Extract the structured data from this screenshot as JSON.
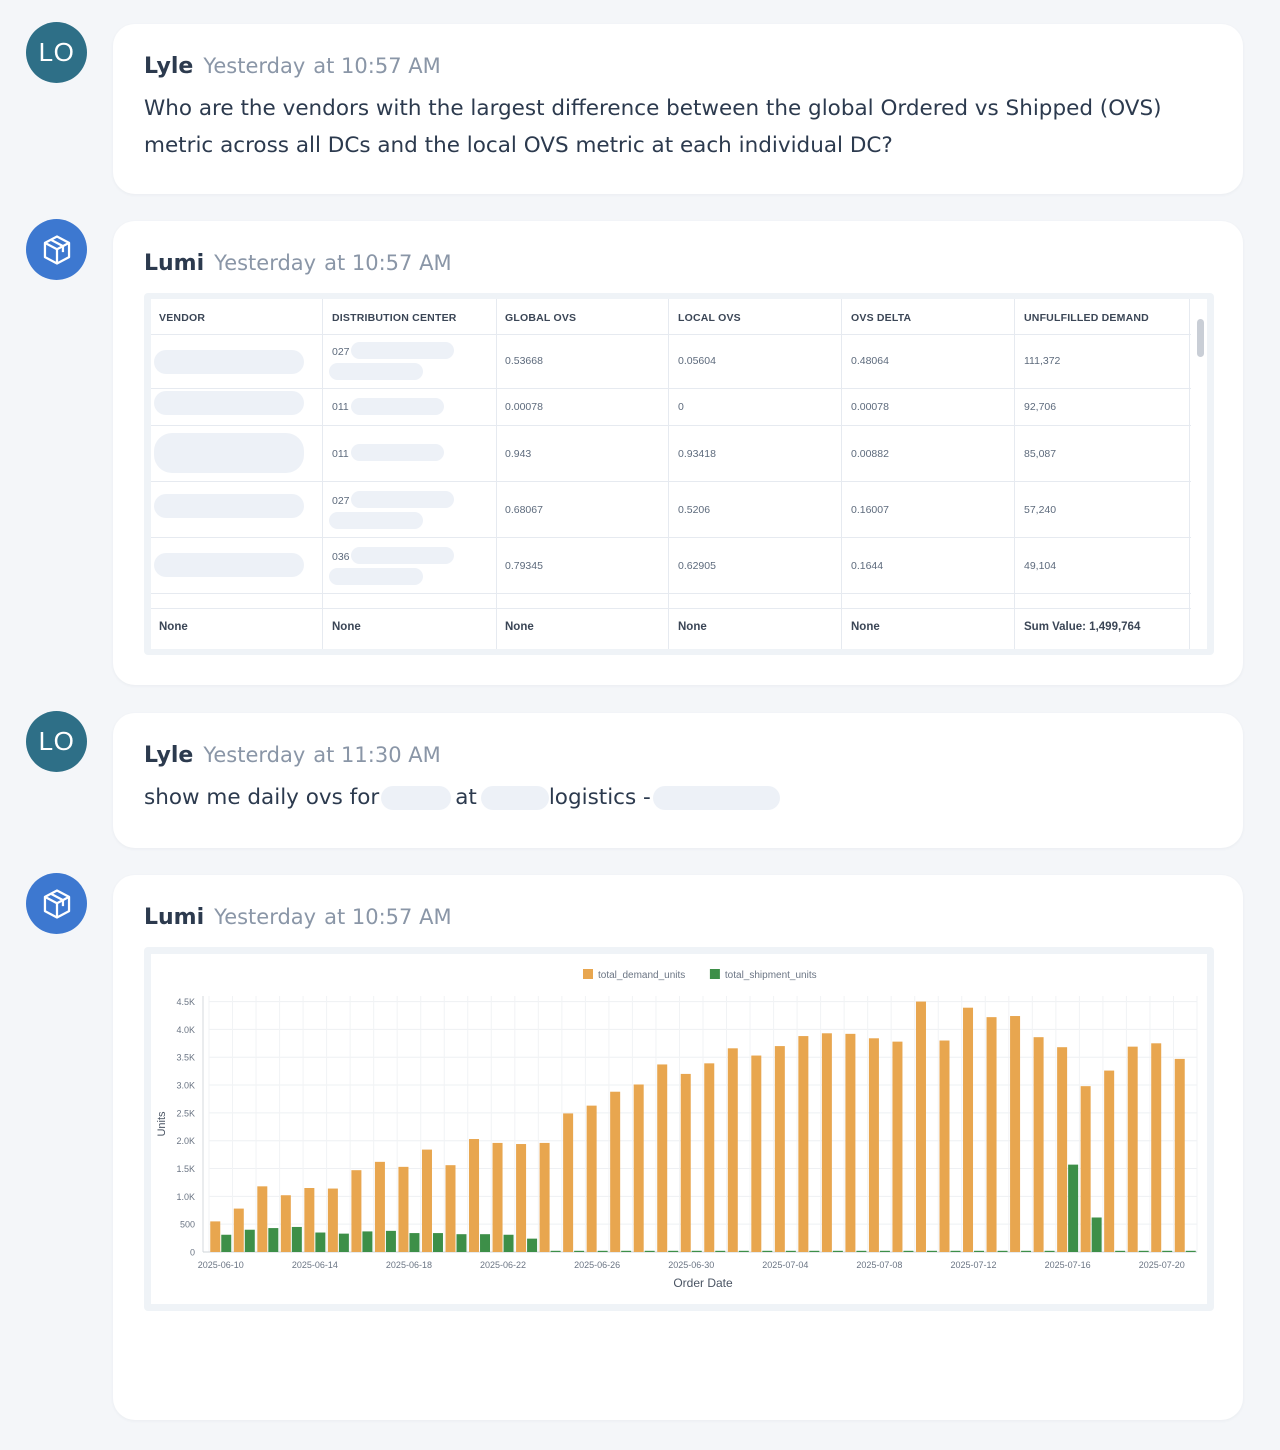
{
  "messages": [
    {
      "author": "Lyle",
      "day": "Yesterday",
      "time": "at 10:57 AM",
      "avatar": "LO",
      "text": "Who are the vendors with the largest difference between the global Ordered vs Shipped (OVS) metric across all DCs and the local OVS metric at each individual DC?"
    },
    {
      "author": "Lumi",
      "day": "Yesterday",
      "time": "at 10:57 AM",
      "avatar_icon": "cube-icon"
    },
    {
      "author": "Lyle",
      "day": "Yesterday",
      "time": "at 11:30 AM",
      "avatar": "LO",
      "text_parts": [
        "show me daily ovs for",
        "at",
        "logistics -"
      ]
    },
    {
      "author": "Lumi",
      "day": "Yesterday",
      "time": "at 10:57 AM",
      "avatar_icon": "cube-icon"
    }
  ],
  "table": {
    "columns": [
      "VENDOR",
      "DISTRIBUTION CENTER",
      "GLOBAL OVS",
      "LOCAL OVS",
      "OVS DELTA",
      "UNFULFILLED DEMAND"
    ],
    "rows": [
      {
        "dc": "027",
        "global": "0.53668",
        "local": "0.05604",
        "delta": "0.48064",
        "unfulfilled": "111,372"
      },
      {
        "dc": "011",
        "global": "0.00078",
        "local": "0",
        "delta": "0.00078",
        "unfulfilled": "92,706"
      },
      {
        "dc": "011",
        "global": "0.943",
        "local": "0.93418",
        "delta": "0.00882",
        "unfulfilled": "85,087"
      },
      {
        "dc": "027",
        "global": "0.68067",
        "local": "0.5206",
        "delta": "0.16007",
        "unfulfilled": "57,240"
      },
      {
        "dc": "036",
        "global": "0.79345",
        "local": "0.62905",
        "delta": "0.1644",
        "unfulfilled": "49,104"
      }
    ],
    "footer": [
      "None",
      "None",
      "None",
      "None",
      "None",
      "Sum Value: 1,499,764"
    ]
  },
  "chart_data": {
    "type": "bar",
    "xlabel": "Order Date",
    "ylabel": "Units",
    "ylim": [
      0,
      4600
    ],
    "yticks": [
      0,
      500,
      1000,
      1500,
      2000,
      2500,
      3000,
      3500,
      4000,
      4500
    ],
    "ytick_labels": [
      "0",
      "500",
      "1.0K",
      "1.5K",
      "2.0K",
      "2.5K",
      "3.0K",
      "3.5K",
      "4.0K",
      "4.5K"
    ],
    "xtick_labels": [
      "2025-06-10",
      "2025-06-14",
      "2025-06-18",
      "2025-06-22",
      "2025-06-26",
      "2025-06-30",
      "2025-07-04",
      "2025-07-08",
      "2025-07-12",
      "2025-07-16",
      "2025-07-20"
    ],
    "xtick_every": 4,
    "legend": "top-center",
    "grid": true,
    "colors": {
      "total_demand_units": "#e8a64f",
      "total_shipment_units": "#3d8f48"
    },
    "series": [
      {
        "name": "total_demand_units",
        "values": [
          550,
          780,
          1180,
          1020,
          1150,
          1140,
          1470,
          1620,
          1530,
          1840,
          1560,
          2030,
          1960,
          1940,
          1960,
          2490,
          2630,
          2880,
          3010,
          3370,
          3200,
          3390,
          3660,
          3530,
          3700,
          3880,
          3930,
          3920,
          3840,
          3780,
          4500,
          3800,
          4390,
          4220,
          4240,
          3860,
          3680,
          2980,
          3260,
          3690,
          3750,
          3470
        ]
      },
      {
        "name": "total_shipment_units",
        "values": [
          310,
          400,
          430,
          450,
          350,
          330,
          370,
          380,
          340,
          340,
          320,
          320,
          310,
          240,
          0,
          0,
          0,
          0,
          0,
          0,
          0,
          0,
          0,
          0,
          0,
          0,
          0,
          0,
          0,
          0,
          0,
          0,
          0,
          0,
          0,
          0,
          1570,
          620,
          0,
          0,
          0,
          0
        ]
      }
    ]
  }
}
